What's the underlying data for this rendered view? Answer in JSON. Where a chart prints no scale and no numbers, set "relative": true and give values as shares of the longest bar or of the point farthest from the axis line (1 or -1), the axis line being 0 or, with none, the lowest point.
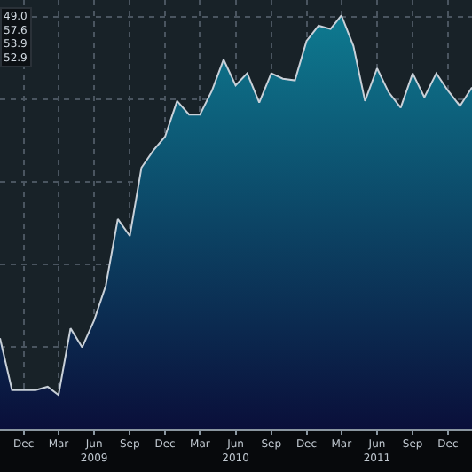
{
  "chart_data": {
    "type": "area",
    "relative": true,
    "x": [
      "2008-10",
      "2008-11",
      "2008-12",
      "2009-01",
      "2009-02",
      "2009-03",
      "2009-04",
      "2009-05",
      "2009-06",
      "2009-07",
      "2009-08",
      "2009-09",
      "2009-10",
      "2009-11",
      "2009-12",
      "2010-01",
      "2010-02",
      "2010-03",
      "2010-04",
      "2010-05",
      "2010-06",
      "2010-07",
      "2010-08",
      "2010-09",
      "2010-10",
      "2010-11",
      "2010-12",
      "2011-01",
      "2011-02",
      "2011-03",
      "2011-04",
      "2011-05",
      "2011-06",
      "2011-07",
      "2011-08",
      "2011-09",
      "2011-10",
      "2011-11",
      "2011-12",
      "2012-01",
      "2012-02"
    ],
    "series": [
      {
        "color": "#0e7a90",
        "values": [
          0.22,
          0.095,
          0.095,
          0.095,
          0.103,
          0.083,
          0.244,
          0.198,
          0.264,
          0.347,
          0.508,
          0.467,
          0.632,
          0.674,
          0.707,
          0.793,
          0.76,
          0.76,
          0.818,
          0.893,
          0.831,
          0.86,
          0.789,
          0.86,
          0.847,
          0.843,
          0.938,
          0.975,
          0.967,
          1.0,
          0.926,
          0.793,
          0.872,
          0.814,
          0.777,
          0.86,
          0.802,
          0.86,
          0.818,
          0.781,
          0.826
        ]
      }
    ],
    "xlim": [
      "2008-10-01",
      "2012-02-01"
    ],
    "xticks": [
      {
        "value": "2008-12",
        "label": "Dec"
      },
      {
        "value": "2009-03",
        "label": "Mar"
      },
      {
        "value": "2009-06",
        "label": "Jun\n2009"
      },
      {
        "value": "2009-09",
        "label": "Sep"
      },
      {
        "value": "2009-12",
        "label": "Dec"
      },
      {
        "value": "2010-03",
        "label": "Mar"
      },
      {
        "value": "2010-06",
        "label": "Jun\n2010"
      },
      {
        "value": "2010-09",
        "label": "Sep"
      },
      {
        "value": "2010-12",
        "label": "Dec"
      },
      {
        "value": "2011-03",
        "label": "Mar"
      },
      {
        "value": "2011-06",
        "label": "Jun\n2011"
      },
      {
        "value": "2011-09",
        "label": "Sep"
      },
      {
        "value": "2011-12",
        "label": "Dec"
      }
    ],
    "annotations": [
      "49.0",
      "57.6",
      "53.9",
      "52.9"
    ],
    "grid": true,
    "line_style": "solid",
    "marker": "none"
  }
}
